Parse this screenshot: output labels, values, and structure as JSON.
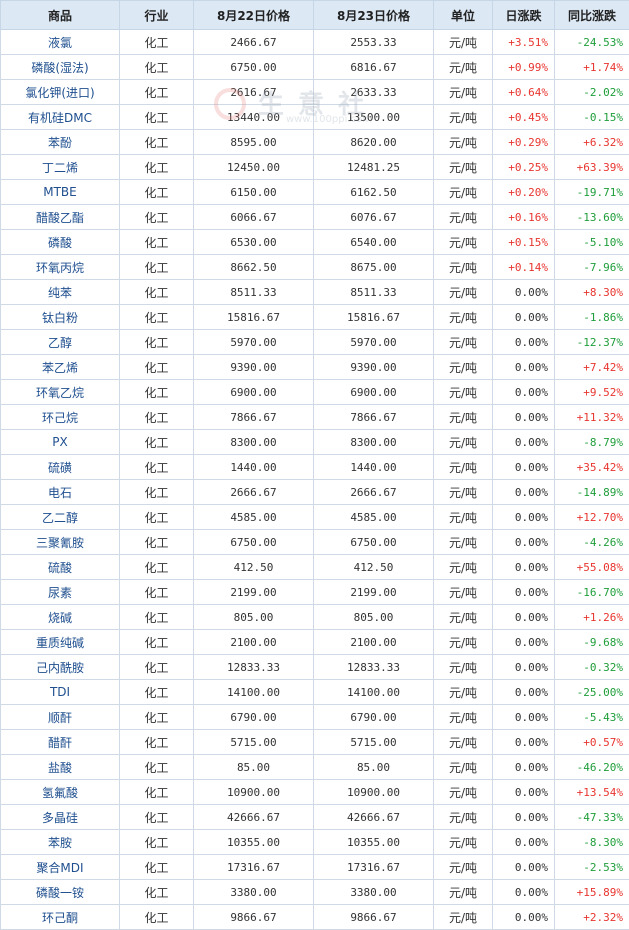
{
  "headers": [
    "商品",
    "行业",
    "8月22日价格",
    "8月23日价格",
    "单位",
    "日涨跌",
    "同比涨跌"
  ],
  "colors": {
    "up": "#e8352f",
    "down": "#1f9e3a",
    "header_bg": "#dce8f4",
    "name_link": "#1f4f8f"
  },
  "watermark": {
    "text": "生意社",
    "url": "www.100ppi.com"
  },
  "rows": [
    {
      "name": "液氯",
      "industry": "化工",
      "price_prev": "2466.67",
      "price_curr": "2553.33",
      "unit": "元/吨",
      "daily": "+3.51%",
      "yoy": "-24.53%"
    },
    {
      "name": "磷酸(湿法)",
      "industry": "化工",
      "price_prev": "6750.00",
      "price_curr": "6816.67",
      "unit": "元/吨",
      "daily": "+0.99%",
      "yoy": "+1.74%"
    },
    {
      "name": "氯化钾(进口)",
      "industry": "化工",
      "price_prev": "2616.67",
      "price_curr": "2633.33",
      "unit": "元/吨",
      "daily": "+0.64%",
      "yoy": "-2.02%"
    },
    {
      "name": "有机硅DMC",
      "industry": "化工",
      "price_prev": "13440.00",
      "price_curr": "13500.00",
      "unit": "元/吨",
      "daily": "+0.45%",
      "yoy": "-0.15%"
    },
    {
      "name": "苯酚",
      "industry": "化工",
      "price_prev": "8595.00",
      "price_curr": "8620.00",
      "unit": "元/吨",
      "daily": "+0.29%",
      "yoy": "+6.32%"
    },
    {
      "name": "丁二烯",
      "industry": "化工",
      "price_prev": "12450.00",
      "price_curr": "12481.25",
      "unit": "元/吨",
      "daily": "+0.25%",
      "yoy": "+63.39%"
    },
    {
      "name": "MTBE",
      "industry": "化工",
      "price_prev": "6150.00",
      "price_curr": "6162.50",
      "unit": "元/吨",
      "daily": "+0.20%",
      "yoy": "-19.71%"
    },
    {
      "name": "醋酸乙酯",
      "industry": "化工",
      "price_prev": "6066.67",
      "price_curr": "6076.67",
      "unit": "元/吨",
      "daily": "+0.16%",
      "yoy": "-13.60%"
    },
    {
      "name": "磷酸",
      "industry": "化工",
      "price_prev": "6530.00",
      "price_curr": "6540.00",
      "unit": "元/吨",
      "daily": "+0.15%",
      "yoy": "-5.10%"
    },
    {
      "name": "环氧丙烷",
      "industry": "化工",
      "price_prev": "8662.50",
      "price_curr": "8675.00",
      "unit": "元/吨",
      "daily": "+0.14%",
      "yoy": "-7.96%"
    },
    {
      "name": "纯苯",
      "industry": "化工",
      "price_prev": "8511.33",
      "price_curr": "8511.33",
      "unit": "元/吨",
      "daily": "0.00%",
      "yoy": "+8.30%"
    },
    {
      "name": "钛白粉",
      "industry": "化工",
      "price_prev": "15816.67",
      "price_curr": "15816.67",
      "unit": "元/吨",
      "daily": "0.00%",
      "yoy": "-1.86%"
    },
    {
      "name": "乙醇",
      "industry": "化工",
      "price_prev": "5970.00",
      "price_curr": "5970.00",
      "unit": "元/吨",
      "daily": "0.00%",
      "yoy": "-12.37%"
    },
    {
      "name": "苯乙烯",
      "industry": "化工",
      "price_prev": "9390.00",
      "price_curr": "9390.00",
      "unit": "元/吨",
      "daily": "0.00%",
      "yoy": "+7.42%"
    },
    {
      "name": "环氧乙烷",
      "industry": "化工",
      "price_prev": "6900.00",
      "price_curr": "6900.00",
      "unit": "元/吨",
      "daily": "0.00%",
      "yoy": "+9.52%"
    },
    {
      "name": "环己烷",
      "industry": "化工",
      "price_prev": "7866.67",
      "price_curr": "7866.67",
      "unit": "元/吨",
      "daily": "0.00%",
      "yoy": "+11.32%"
    },
    {
      "name": "PX",
      "industry": "化工",
      "price_prev": "8300.00",
      "price_curr": "8300.00",
      "unit": "元/吨",
      "daily": "0.00%",
      "yoy": "-8.79%"
    },
    {
      "name": "硫磺",
      "industry": "化工",
      "price_prev": "1440.00",
      "price_curr": "1440.00",
      "unit": "元/吨",
      "daily": "0.00%",
      "yoy": "+35.42%"
    },
    {
      "name": "电石",
      "industry": "化工",
      "price_prev": "2666.67",
      "price_curr": "2666.67",
      "unit": "元/吨",
      "daily": "0.00%",
      "yoy": "-14.89%"
    },
    {
      "name": "乙二醇",
      "industry": "化工",
      "price_prev": "4585.00",
      "price_curr": "4585.00",
      "unit": "元/吨",
      "daily": "0.00%",
      "yoy": "+12.70%"
    },
    {
      "name": "三聚氰胺",
      "industry": "化工",
      "price_prev": "6750.00",
      "price_curr": "6750.00",
      "unit": "元/吨",
      "daily": "0.00%",
      "yoy": "-4.26%"
    },
    {
      "name": "硫酸",
      "industry": "化工",
      "price_prev": "412.50",
      "price_curr": "412.50",
      "unit": "元/吨",
      "daily": "0.00%",
      "yoy": "+55.08%"
    },
    {
      "name": "尿素",
      "industry": "化工",
      "price_prev": "2199.00",
      "price_curr": "2199.00",
      "unit": "元/吨",
      "daily": "0.00%",
      "yoy": "-16.70%"
    },
    {
      "name": "烧碱",
      "industry": "化工",
      "price_prev": "805.00",
      "price_curr": "805.00",
      "unit": "元/吨",
      "daily": "0.00%",
      "yoy": "+1.26%"
    },
    {
      "name": "重质纯碱",
      "industry": "化工",
      "price_prev": "2100.00",
      "price_curr": "2100.00",
      "unit": "元/吨",
      "daily": "0.00%",
      "yoy": "-9.68%"
    },
    {
      "name": "己内酰胺",
      "industry": "化工",
      "price_prev": "12833.33",
      "price_curr": "12833.33",
      "unit": "元/吨",
      "daily": "0.00%",
      "yoy": "-0.32%"
    },
    {
      "name": "TDI",
      "industry": "化工",
      "price_prev": "14100.00",
      "price_curr": "14100.00",
      "unit": "元/吨",
      "daily": "0.00%",
      "yoy": "-25.00%"
    },
    {
      "name": "顺酐",
      "industry": "化工",
      "price_prev": "6790.00",
      "price_curr": "6790.00",
      "unit": "元/吨",
      "daily": "0.00%",
      "yoy": "-5.43%"
    },
    {
      "name": "醋酐",
      "industry": "化工",
      "price_prev": "5715.00",
      "price_curr": "5715.00",
      "unit": "元/吨",
      "daily": "0.00%",
      "yoy": "+0.57%"
    },
    {
      "name": "盐酸",
      "industry": "化工",
      "price_prev": "85.00",
      "price_curr": "85.00",
      "unit": "元/吨",
      "daily": "0.00%",
      "yoy": "-46.20%"
    },
    {
      "name": "氢氟酸",
      "industry": "化工",
      "price_prev": "10900.00",
      "price_curr": "10900.00",
      "unit": "元/吨",
      "daily": "0.00%",
      "yoy": "+13.54%"
    },
    {
      "name": "多晶硅",
      "industry": "化工",
      "price_prev": "42666.67",
      "price_curr": "42666.67",
      "unit": "元/吨",
      "daily": "0.00%",
      "yoy": "-47.33%"
    },
    {
      "name": "苯胺",
      "industry": "化工",
      "price_prev": "10355.00",
      "price_curr": "10355.00",
      "unit": "元/吨",
      "daily": "0.00%",
      "yoy": "-8.30%"
    },
    {
      "name": "聚合MDI",
      "industry": "化工",
      "price_prev": "17316.67",
      "price_curr": "17316.67",
      "unit": "元/吨",
      "daily": "0.00%",
      "yoy": "-2.53%"
    },
    {
      "name": "磷酸一铵",
      "industry": "化工",
      "price_prev": "3380.00",
      "price_curr": "3380.00",
      "unit": "元/吨",
      "daily": "0.00%",
      "yoy": "+15.89%"
    },
    {
      "name": "环己酮",
      "industry": "化工",
      "price_prev": "9866.67",
      "price_curr": "9866.67",
      "unit": "元/吨",
      "daily": "0.00%",
      "yoy": "+2.32%"
    }
  ]
}
